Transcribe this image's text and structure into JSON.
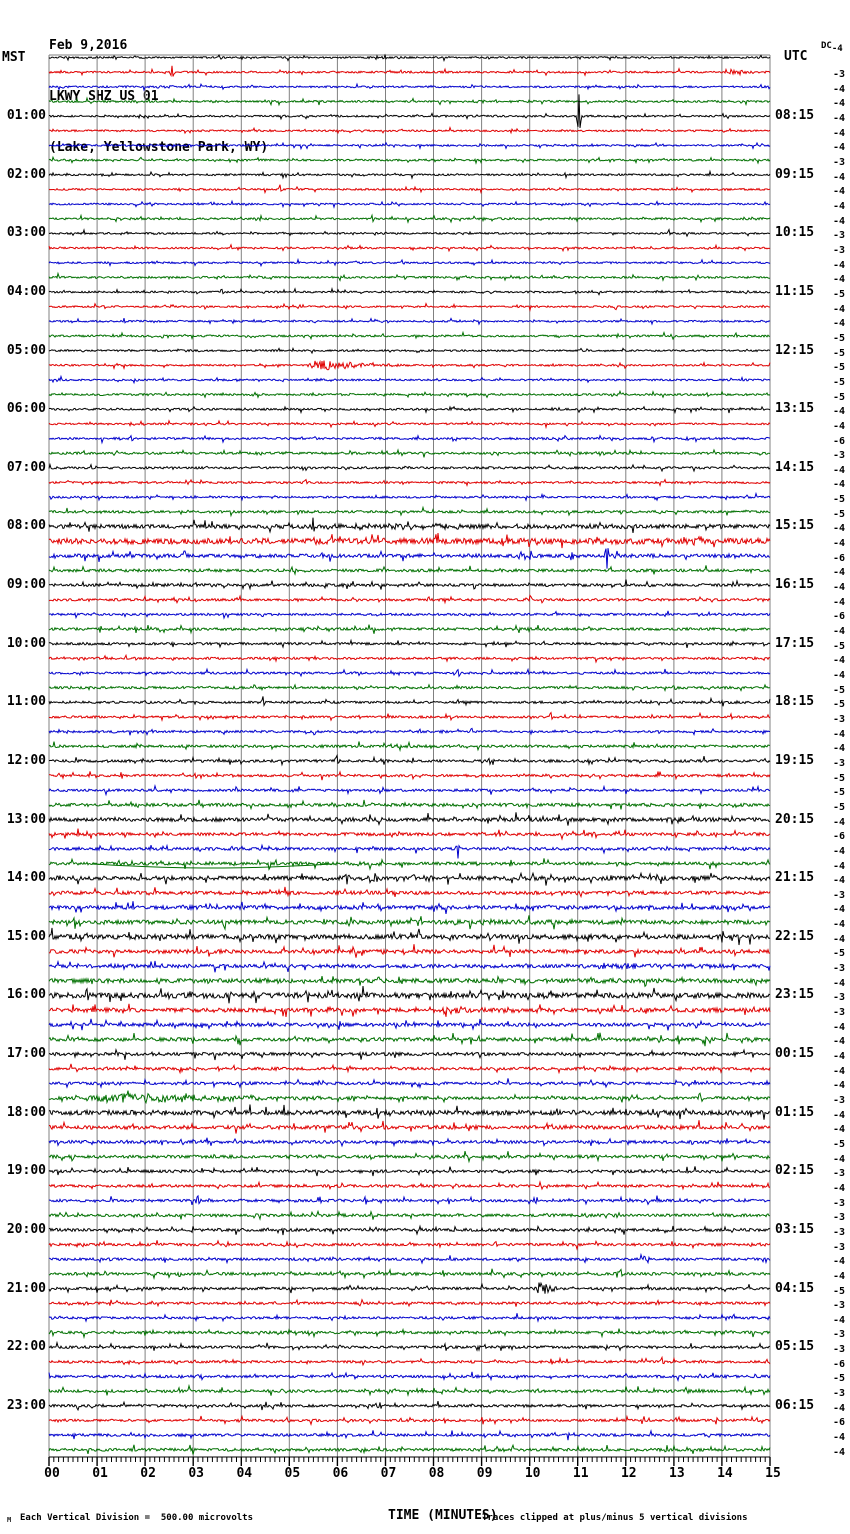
{
  "header": {
    "date": "Feb 9,2016",
    "station": "LKWY SHZ US 01",
    "location": "(Lake, Yellowstone Park, WY)"
  },
  "axes": {
    "left_timezone": "MST",
    "right_timezone": "UTC",
    "dc_label": "DC",
    "x_title": "TIME (MINUTES)",
    "x_ticks": [
      "00",
      "01",
      "02",
      "03",
      "04",
      "05",
      "06",
      "07",
      "08",
      "09",
      "10",
      "11",
      "12",
      "13",
      "14",
      "15"
    ],
    "x_range": [
      0,
      15
    ]
  },
  "footer": {
    "scale_note": "Each Vertical Division =  500.00 microvolts",
    "clip_note": "Traces clipped at plus/minus 5 vertical divisions",
    "corner_mark": "M"
  },
  "colors": {
    "black": "#000000",
    "red": "#e00000",
    "blue": "#0000cc",
    "green": "#007000",
    "grid": "#808080"
  },
  "chart_data": {
    "type": "line",
    "subtype": "helicorder-seismogram",
    "title": "LKWY SHZ US 01 — Feb 9,2016",
    "minutes_per_line": 15,
    "lines": 96,
    "color_cycle": [
      "black",
      "red",
      "blue",
      "green"
    ],
    "grid": "vertical-every-minute",
    "legend_position": "none",
    "rows": [
      {
        "color": "black",
        "dc": -4,
        "amp": 0.9,
        "events": [
          {
            "type": "spike",
            "m": 7.0,
            "a": 2.5,
            "d": 1
          }
        ]
      },
      {
        "color": "red",
        "dc": -3,
        "amp": 0.9,
        "events": [
          {
            "type": "spike",
            "m": 2.55,
            "a": 7,
            "d": 1
          },
          {
            "type": "burst",
            "m": 14.0,
            "w": 1.0,
            "a": 3
          }
        ]
      },
      {
        "color": "blue",
        "dc": -4,
        "amp": 0.9,
        "events": [
          {
            "type": "burst",
            "m": 2.2,
            "w": 0.7,
            "a": 1.8
          }
        ]
      },
      {
        "color": "green",
        "dc": -4,
        "amp": 1.0,
        "events": [
          {
            "type": "burst",
            "m": 8.5,
            "w": 3.0,
            "a": 1.2
          }
        ]
      },
      {
        "color": "black",
        "dc": -4,
        "amp": 0.9,
        "left_label": "01:00",
        "right_label": "08:15",
        "events": [
          {
            "type": "spike",
            "m": 11.02,
            "a": 22,
            "d": 1
          }
        ]
      },
      {
        "color": "red",
        "dc": -4,
        "amp": 0.9
      },
      {
        "color": "blue",
        "dc": -4,
        "amp": 0.9
      },
      {
        "color": "green",
        "dc": -3,
        "amp": 1.0
      },
      {
        "color": "black",
        "dc": -4,
        "amp": 0.9,
        "left_label": "02:00",
        "right_label": "09:15"
      },
      {
        "color": "red",
        "dc": -4,
        "amp": 0.9,
        "events": [
          {
            "type": "spike",
            "m": 4.8,
            "a": 4,
            "d": 0
          }
        ]
      },
      {
        "color": "blue",
        "dc": -4,
        "amp": 0.9
      },
      {
        "color": "green",
        "dc": -4,
        "amp": 1.0
      },
      {
        "color": "black",
        "dc": -3,
        "amp": 0.9,
        "left_label": "03:00",
        "right_label": "10:15",
        "events": [
          {
            "type": "spike",
            "m": 12.9,
            "a": 3,
            "d": 0
          }
        ]
      },
      {
        "color": "red",
        "dc": -3,
        "amp": 0.9
      },
      {
        "color": "blue",
        "dc": -4,
        "amp": 0.9,
        "events": [
          {
            "type": "spike",
            "m": 7.35,
            "a": 3,
            "d": 0
          }
        ]
      },
      {
        "color": "green",
        "dc": -4,
        "amp": 1.0
      },
      {
        "color": "black",
        "dc": -5,
        "amp": 0.9,
        "left_label": "04:00",
        "right_label": "11:15",
        "events": [
          {
            "type": "spike",
            "m": 3.6,
            "a": 3,
            "d": 0
          }
        ]
      },
      {
        "color": "red",
        "dc": -4,
        "amp": 0.9
      },
      {
        "color": "blue",
        "dc": -4,
        "amp": 0.9
      },
      {
        "color": "green",
        "dc": -5,
        "amp": 1.0
      },
      {
        "color": "black",
        "dc": -5,
        "amp": 0.9,
        "left_label": "05:00",
        "right_label": "12:15"
      },
      {
        "color": "red",
        "dc": -5,
        "amp": 0.9,
        "events": [
          {
            "type": "burst",
            "m": 5.3,
            "w": 2.3,
            "a": 5
          }
        ]
      },
      {
        "color": "blue",
        "dc": -5,
        "amp": 0.9,
        "events": [
          {
            "type": "burst",
            "m": 5.35,
            "w": 0.8,
            "a": 2
          }
        ]
      },
      {
        "color": "green",
        "dc": -5,
        "amp": 1.0
      },
      {
        "color": "black",
        "dc": -4,
        "amp": 1.0,
        "left_label": "06:00",
        "right_label": "13:15"
      },
      {
        "color": "red",
        "dc": -4,
        "amp": 0.9
      },
      {
        "color": "blue",
        "dc": -6,
        "amp": 1.1,
        "events": [
          {
            "type": "spike",
            "m": 1.7,
            "a": 3,
            "d": 0
          }
        ]
      },
      {
        "color": "green",
        "dc": -3,
        "amp": 1.1,
        "events": [
          {
            "type": "burst",
            "m": 6.2,
            "w": 0.5,
            "a": 2
          }
        ]
      },
      {
        "color": "black",
        "dc": -4,
        "amp": 1.1,
        "left_label": "07:00",
        "right_label": "14:15"
      },
      {
        "color": "red",
        "dc": -4,
        "amp": 1.0,
        "events": [
          {
            "type": "spike",
            "m": 5.35,
            "a": 3,
            "d": 0
          }
        ]
      },
      {
        "color": "blue",
        "dc": -5,
        "amp": 1.0
      },
      {
        "color": "green",
        "dc": -5,
        "amp": 1.2
      },
      {
        "color": "black",
        "dc": -4,
        "amp": 2.0,
        "left_label": "08:00",
        "right_label": "15:15",
        "events": [
          {
            "type": "spike",
            "m": 5.5,
            "a": 9,
            "d": 1
          },
          {
            "type": "burst",
            "m": 5.5,
            "w": 9.5,
            "a": 1.5
          }
        ]
      },
      {
        "color": "red",
        "dc": -4,
        "amp": 2.8
      },
      {
        "color": "blue",
        "dc": -6,
        "amp": 1.8,
        "events": [
          {
            "type": "spike",
            "m": 10.9,
            "a": 5,
            "d": -1
          },
          {
            "type": "spike",
            "m": 11.6,
            "a": 13,
            "d": -1
          }
        ]
      },
      {
        "color": "green",
        "dc": -4,
        "amp": 1.4
      },
      {
        "color": "black",
        "dc": -4,
        "amp": 1.4,
        "left_label": "09:00",
        "right_label": "16:15"
      },
      {
        "color": "red",
        "dc": -4,
        "amp": 1.2,
        "events": [
          {
            "type": "spike",
            "m": 2.6,
            "a": 3,
            "d": 0
          }
        ]
      },
      {
        "color": "blue",
        "dc": -6,
        "amp": 1.1
      },
      {
        "color": "green",
        "dc": -4,
        "amp": 1.3
      },
      {
        "color": "black",
        "dc": -5,
        "amp": 1.2,
        "left_label": "10:00",
        "right_label": "17:15",
        "events": [
          {
            "type": "spike",
            "m": 10.3,
            "a": 3,
            "d": 0
          }
        ]
      },
      {
        "color": "red",
        "dc": -4,
        "amp": 1.1
      },
      {
        "color": "blue",
        "dc": -4,
        "amp": 1.1,
        "events": [
          {
            "type": "spike",
            "m": 8.5,
            "a": 4,
            "d": 0
          }
        ]
      },
      {
        "color": "green",
        "dc": -5,
        "amp": 1.2,
        "events": [
          {
            "type": "spike",
            "m": 13.0,
            "a": 3,
            "d": 0
          }
        ]
      },
      {
        "color": "black",
        "dc": -5,
        "amp": 1.2,
        "left_label": "11:00",
        "right_label": "18:15",
        "events": [
          {
            "type": "spike",
            "m": 4.45,
            "a": 5,
            "d": 0
          }
        ]
      },
      {
        "color": "red",
        "dc": -3,
        "amp": 1.1,
        "events": [
          {
            "type": "spike",
            "m": 10.45,
            "a": 4,
            "d": 0
          }
        ]
      },
      {
        "color": "blue",
        "dc": -4,
        "amp": 1.1
      },
      {
        "color": "green",
        "dc": -4,
        "amp": 1.3
      },
      {
        "color": "black",
        "dc": -3,
        "amp": 1.3,
        "left_label": "12:00",
        "right_label": "19:15",
        "events": [
          {
            "type": "spike",
            "m": 6.0,
            "a": 5,
            "d": 0
          }
        ]
      },
      {
        "color": "red",
        "dc": -5,
        "amp": 1.2
      },
      {
        "color": "blue",
        "dc": -5,
        "amp": 1.2
      },
      {
        "color": "green",
        "dc": -5,
        "amp": 1.6
      },
      {
        "color": "black",
        "dc": -4,
        "amp": 1.9,
        "left_label": "13:00",
        "right_label": "20:15"
      },
      {
        "color": "red",
        "dc": -6,
        "amp": 1.5
      },
      {
        "color": "blue",
        "dc": -4,
        "amp": 1.4,
        "events": [
          {
            "type": "spike",
            "m": 8.5,
            "a": 6,
            "d": -1
          }
        ]
      },
      {
        "color": "green",
        "dc": -4,
        "amp": 1.5,
        "events": [
          {
            "type": "smooth",
            "m": 0.9,
            "w": 5.0,
            "a": 4
          }
        ]
      },
      {
        "color": "black",
        "dc": -4,
        "amp": 2.1,
        "left_label": "14:00",
        "right_label": "21:15",
        "events": [
          {
            "type": "spike",
            "m": 6.2,
            "a": 8,
            "d": -1
          },
          {
            "type": "burst",
            "m": 6.3,
            "w": 3.2,
            "a": 3
          }
        ]
      },
      {
        "color": "red",
        "dc": -3,
        "amp": 1.7
      },
      {
        "color": "blue",
        "dc": -4,
        "amp": 1.9
      },
      {
        "color": "green",
        "dc": -4,
        "amp": 2.1,
        "events": [
          {
            "type": "burst",
            "m": 8.5,
            "w": 3.5,
            "a": 1.5
          }
        ]
      },
      {
        "color": "black",
        "dc": -4,
        "amp": 2.3,
        "left_label": "15:00",
        "right_label": "22:15",
        "events": [
          {
            "type": "spike",
            "m": 0.8,
            "a": 5,
            "d": 0
          }
        ]
      },
      {
        "color": "red",
        "dc": -5,
        "amp": 1.9
      },
      {
        "color": "blue",
        "dc": -3,
        "amp": 1.8,
        "events": [
          {
            "type": "burst",
            "m": 11.0,
            "w": 4.0,
            "a": 2.2
          }
        ]
      },
      {
        "color": "green",
        "dc": -4,
        "amp": 2.1
      },
      {
        "color": "black",
        "dc": -3,
        "amp": 2.6,
        "left_label": "16:00",
        "right_label": "23:15",
        "events": [
          {
            "type": "spike",
            "m": 0.8,
            "a": 6,
            "d": 0
          }
        ]
      },
      {
        "color": "red",
        "dc": -3,
        "amp": 2.0,
        "events": [
          {
            "type": "burst",
            "m": 7.5,
            "w": 3.5,
            "a": 2.5
          }
        ]
      },
      {
        "color": "blue",
        "dc": -4,
        "amp": 1.7
      },
      {
        "color": "green",
        "dc": -4,
        "amp": 1.8
      },
      {
        "color": "black",
        "dc": -4,
        "amp": 1.6,
        "left_label": "17:00",
        "right_label": "00:15"
      },
      {
        "color": "red",
        "dc": -4,
        "amp": 1.4
      },
      {
        "color": "blue",
        "dc": -4,
        "amp": 1.4
      },
      {
        "color": "green",
        "dc": -3,
        "amp": 1.5,
        "events": [
          {
            "type": "burst",
            "m": 0.3,
            "w": 7.0,
            "a": 4.5
          }
        ]
      },
      {
        "color": "black",
        "dc": -4,
        "amp": 2.3,
        "left_label": "18:00",
        "right_label": "01:15"
      },
      {
        "color": "red",
        "dc": -4,
        "amp": 1.9
      },
      {
        "color": "blue",
        "dc": -5,
        "amp": 1.5
      },
      {
        "color": "green",
        "dc": -4,
        "amp": 1.5
      },
      {
        "color": "black",
        "dc": -3,
        "amp": 1.4,
        "left_label": "19:00",
        "right_label": "02:15"
      },
      {
        "color": "red",
        "dc": -4,
        "amp": 1.3
      },
      {
        "color": "blue",
        "dc": -3,
        "amp": 1.3,
        "events": [
          {
            "type": "spike",
            "m": 3.1,
            "a": 4,
            "d": 0
          }
        ]
      },
      {
        "color": "green",
        "dc": -3,
        "amp": 1.4
      },
      {
        "color": "black",
        "dc": -3,
        "amp": 1.5,
        "left_label": "20:00",
        "right_label": "03:15"
      },
      {
        "color": "red",
        "dc": -3,
        "amp": 1.3,
        "events": [
          {
            "type": "spike",
            "m": 9.3,
            "a": 4,
            "d": 0
          }
        ]
      },
      {
        "color": "blue",
        "dc": -4,
        "amp": 1.3
      },
      {
        "color": "green",
        "dc": -4,
        "amp": 1.4,
        "events": [
          {
            "type": "spike",
            "m": 11.9,
            "a": 4,
            "d": 0
          }
        ]
      },
      {
        "color": "black",
        "dc": -5,
        "amp": 1.3,
        "left_label": "21:00",
        "right_label": "04:15",
        "events": [
          {
            "type": "burst",
            "m": 10.1,
            "w": 0.7,
            "a": 6
          }
        ]
      },
      {
        "color": "red",
        "dc": -3,
        "amp": 1.2
      },
      {
        "color": "blue",
        "dc": -4,
        "amp": 1.2
      },
      {
        "color": "green",
        "dc": -3,
        "amp": 1.3
      },
      {
        "color": "black",
        "dc": -3,
        "amp": 1.3,
        "left_label": "22:00",
        "right_label": "05:15"
      },
      {
        "color": "red",
        "dc": -6,
        "amp": 1.2,
        "events": [
          {
            "type": "spike",
            "m": 12.75,
            "a": 5,
            "d": 0
          }
        ]
      },
      {
        "color": "blue",
        "dc": -5,
        "amp": 1.3
      },
      {
        "color": "green",
        "dc": -3,
        "amp": 1.4,
        "events": [
          {
            "type": "spike",
            "m": 13.25,
            "a": 4,
            "d": 0
          }
        ]
      },
      {
        "color": "black",
        "dc": -4,
        "amp": 1.3,
        "left_label": "23:00",
        "right_label": "06:15"
      },
      {
        "color": "red",
        "dc": -6,
        "amp": 1.2
      },
      {
        "color": "blue",
        "dc": -4,
        "amp": 1.3,
        "events": [
          {
            "type": "spike",
            "m": 10.8,
            "a": 4,
            "d": -1
          }
        ]
      },
      {
        "color": "green",
        "dc": -4,
        "amp": 1.4,
        "events": [
          {
            "type": "spike",
            "m": 12.85,
            "a": 4,
            "d": 1
          }
        ]
      }
    ]
  }
}
